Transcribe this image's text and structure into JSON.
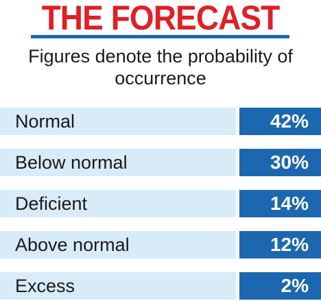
{
  "colors": {
    "title": "#e01f26",
    "rule": "#1c67b0",
    "row_bg": "#d7ebf8",
    "value_box": "#1c67b0",
    "value_text": "#ffffff",
    "label_text": "#1a1a1a"
  },
  "chart_data": {
    "type": "table",
    "title": "THE FORECAST",
    "subtitle": "Figures denote the probability of occurrence",
    "categories": [
      "Normal",
      "Below normal",
      "Deficient",
      "Above normal",
      "Excess"
    ],
    "values": [
      42,
      30,
      14,
      12,
      2
    ],
    "value_labels": [
      "42%",
      "30%",
      "14%",
      "12%",
      "2%"
    ],
    "unit": "%"
  }
}
